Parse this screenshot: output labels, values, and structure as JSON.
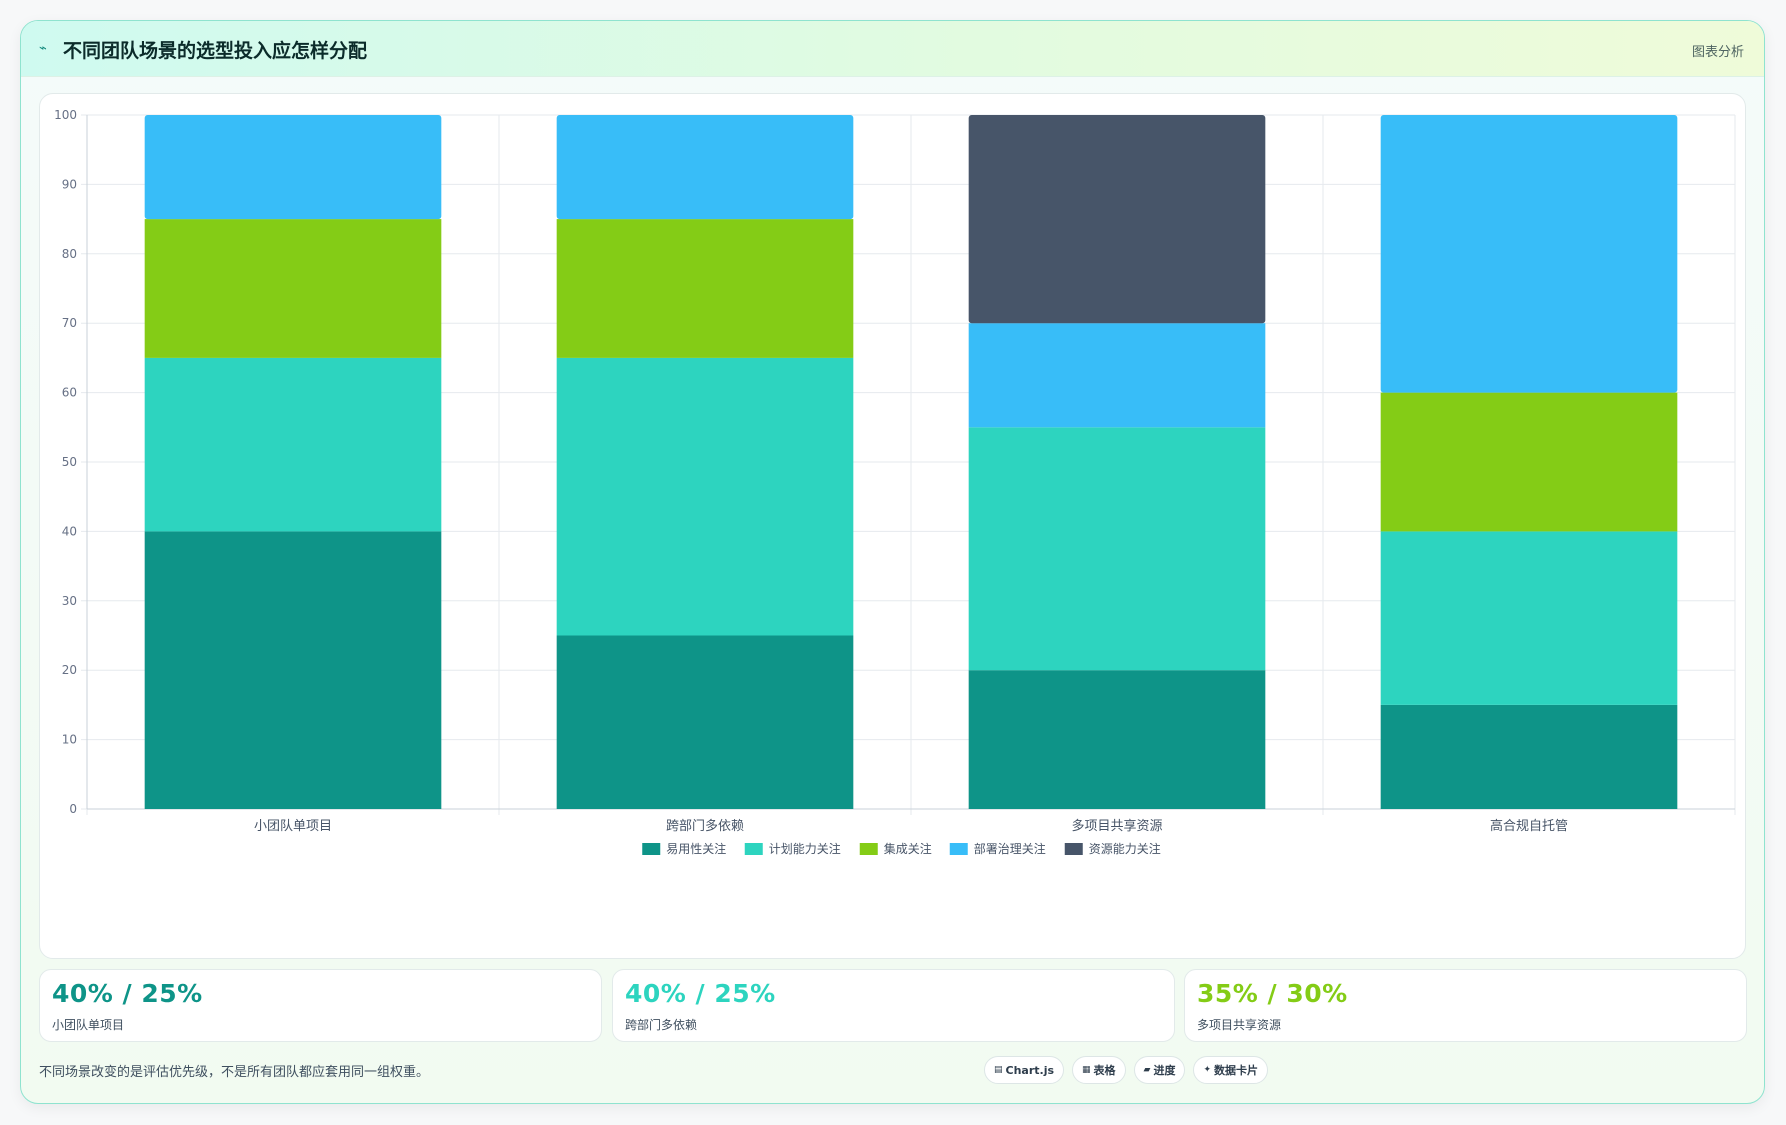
{
  "header": {
    "title": "不同团队场景的选型投入应怎样分配",
    "icon": "pulse-icon",
    "action_label": "图表分析"
  },
  "chart_data": {
    "type": "bar",
    "stacked": true,
    "categories": [
      "小团队单项目",
      "跨部门多依赖",
      "多项目共享资源",
      "高合规自托管"
    ],
    "series": [
      {
        "name": "易用性关注",
        "color": "#0e9488",
        "values": [
          40,
          25,
          20,
          15
        ]
      },
      {
        "name": "计划能力关注",
        "color": "#2dd4bf",
        "values": [
          25,
          40,
          35,
          25
        ]
      },
      {
        "name": "集成关注",
        "color": "#84cc16",
        "values": [
          20,
          20,
          0,
          20
        ]
      },
      {
        "name": "部署治理关注",
        "color": "#38bdf8",
        "values": [
          15,
          15,
          15,
          40
        ]
      },
      {
        "name": "资源能力关注",
        "color": "#475569",
        "values": [
          0,
          0,
          30,
          0
        ]
      }
    ],
    "ylim": [
      0,
      100
    ],
    "yticks": [
      0,
      10,
      20,
      30,
      40,
      50,
      60,
      70,
      80,
      90,
      100
    ],
    "grid": true,
    "legend": "bottom"
  },
  "stats": [
    {
      "value": "40% / 25%",
      "label": "小团队单项目",
      "color": "#0e9488"
    },
    {
      "value": "40% / 25%",
      "label": "跨部门多依赖",
      "color": "#2dd4bf"
    },
    {
      "value": "35% / 30%",
      "label": "多项目共享资源",
      "color": "#84cc16"
    }
  ],
  "footer": {
    "note": "不同场景改变的是评估优先级，不是所有团队都应套用同一组权重。",
    "chips": [
      {
        "icon": "chart-icon",
        "glyph": "▤",
        "label": "Chart.js"
      },
      {
        "icon": "table-icon",
        "glyph": "▦",
        "label": "表格"
      },
      {
        "icon": "progress-icon",
        "glyph": "▰",
        "label": "进度"
      },
      {
        "icon": "card-icon",
        "glyph": "✦",
        "label": "数据卡片"
      }
    ]
  }
}
